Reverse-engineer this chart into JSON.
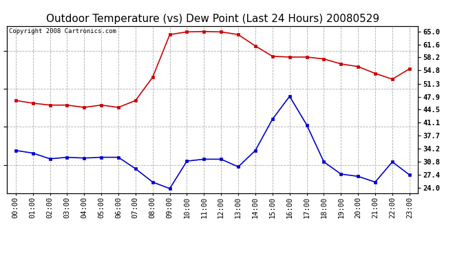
{
  "title": "Outdoor Temperature (vs) Dew Point (Last 24 Hours) 20080529",
  "copyright": "Copyright 2008 Cartronics.com",
  "hours": [
    "00:00",
    "01:00",
    "02:00",
    "03:00",
    "04:00",
    "05:00",
    "06:00",
    "07:00",
    "08:00",
    "09:00",
    "10:00",
    "11:00",
    "12:00",
    "13:00",
    "14:00",
    "15:00",
    "16:00",
    "17:00",
    "18:00",
    "19:00",
    "20:00",
    "21:00",
    "22:00",
    "23:00"
  ],
  "temp": [
    46.9,
    46.2,
    45.7,
    45.7,
    45.1,
    45.7,
    45.1,
    46.9,
    53.0,
    64.2,
    64.9,
    65.0,
    64.9,
    64.2,
    61.2,
    58.5,
    58.3,
    58.3,
    57.8,
    56.5,
    55.8,
    54.0,
    52.5,
    55.2
  ],
  "dew": [
    33.8,
    33.1,
    31.6,
    32.0,
    31.8,
    32.0,
    32.0,
    29.0,
    25.5,
    23.8,
    31.0,
    31.5,
    31.5,
    29.5,
    33.8,
    42.0,
    48.0,
    40.5,
    30.8,
    27.6,
    27.0,
    25.5,
    30.8,
    27.4
  ],
  "temp_color": "#cc0000",
  "dew_color": "#0000cc",
  "bg_color": "#ffffff",
  "plot_bg_color": "#ffffff",
  "grid_color": "#aaaaaa",
  "yticks": [
    24.0,
    27.4,
    30.8,
    34.2,
    37.7,
    41.1,
    44.5,
    47.9,
    51.3,
    54.8,
    58.2,
    61.6,
    65.0
  ],
  "ylim": [
    22.5,
    66.5
  ],
  "marker": "s",
  "marker_size": 3,
  "line_width": 1.2,
  "title_fontsize": 11,
  "tick_fontsize": 7.5,
  "copyright_fontsize": 6.5
}
